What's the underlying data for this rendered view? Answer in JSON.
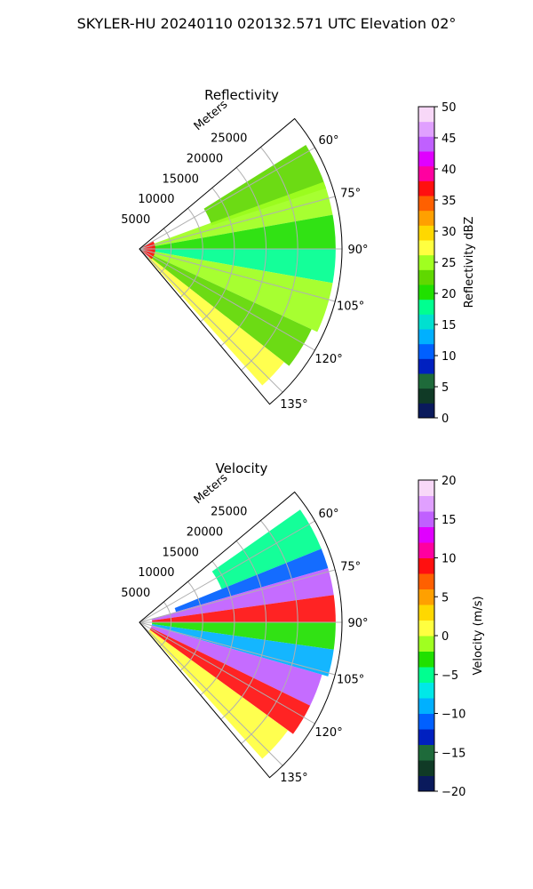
{
  "figure_title": "SKYLER-HU  20240110  020132.571 UTC Elevation 02°",
  "colors": {
    "reflectivity_colormap": [
      "#0a1a5c",
      "#103a26",
      "#1e6a3a",
      "#0020c0",
      "#0060ff",
      "#00b0ff",
      "#00e0d0",
      "#00ff90",
      "#20e000",
      "#60d800",
      "#a0ff20",
      "#ffff40",
      "#ffd800",
      "#ffa000",
      "#ff6000",
      "#ff1010",
      "#ff00a0",
      "#e000ff",
      "#c060ff",
      "#e0a0ff",
      "#f8d8f8"
    ],
    "velocity_colormap": [
      "#0a1a5c",
      "#103a26",
      "#1e6a3a",
      "#0020c0",
      "#0060ff",
      "#00b0ff",
      "#00e8e8",
      "#00ff90",
      "#20e000",
      "#a0ff20",
      "#ffff40",
      "#ffd800",
      "#ffa000",
      "#ff6000",
      "#ff1010",
      "#ff00a0",
      "#e000ff",
      "#c060ff",
      "#e0a0ff",
      "#f8d8f8"
    ]
  },
  "chart_data": [
    {
      "type": "heatmap",
      "title": "Reflectivity",
      "radial_label": "Meters",
      "range_ticks": [
        "5000",
        "10000",
        "15000",
        "20000",
        "25000"
      ],
      "range_values": [
        5000,
        10000,
        15000,
        20000,
        25000
      ],
      "max_range": 32000,
      "azimuth_range_deg": [
        50,
        140
      ],
      "azimuth_ticks": [
        "60°",
        "75°",
        "90°",
        "105°",
        "120°",
        "135°"
      ],
      "azimuth_values": [
        60,
        75,
        90,
        105,
        120,
        135
      ],
      "colorbar": {
        "label": "Reflectivity dBZ",
        "min": 0,
        "max": 50,
        "ticks": [
          "0",
          "5",
          "10",
          "15",
          "20",
          "25",
          "30",
          "35",
          "40",
          "45",
          "50"
        ]
      },
      "sectors": [
        {
          "az_from": 58,
          "az_to": 72,
          "r_from": 12000,
          "r_to": 31000,
          "value": 22
        },
        {
          "az_from": 70,
          "az_to": 80,
          "r_from": 2000,
          "r_to": 31000,
          "value": 26
        },
        {
          "az_from": 80,
          "az_to": 90,
          "r_from": 2000,
          "r_to": 31000,
          "value": 21
        },
        {
          "az_from": 90,
          "az_to": 100,
          "r_from": 2000,
          "r_to": 31000,
          "value": 17
        },
        {
          "az_from": 100,
          "az_to": 115,
          "r_from": 2000,
          "r_to": 31000,
          "value": 24
        },
        {
          "az_from": 115,
          "az_to": 128,
          "r_from": 2000,
          "r_to": 30000,
          "value": 22
        },
        {
          "az_from": 128,
          "az_to": 138,
          "r_from": 2000,
          "r_to": 29000,
          "value": 27
        },
        {
          "az_from": 60,
          "az_to": 130,
          "r_from": 0,
          "r_to": 2500,
          "value": 36
        }
      ]
    },
    {
      "type": "heatmap",
      "title": "Velocity",
      "radial_label": "Meters",
      "range_ticks": [
        "5000",
        "10000",
        "15000",
        "20000",
        "25000"
      ],
      "range_values": [
        5000,
        10000,
        15000,
        20000,
        25000
      ],
      "max_range": 32000,
      "azimuth_range_deg": [
        50,
        140
      ],
      "azimuth_ticks": [
        "60°",
        "75°",
        "90°",
        "105°",
        "120°",
        "135°"
      ],
      "azimuth_values": [
        60,
        75,
        90,
        105,
        120,
        135
      ],
      "colorbar": {
        "label": "Velocity (m/s)",
        "min": -20,
        "max": 20,
        "ticks": [
          "−20",
          "−15",
          "−10",
          "−5",
          "0",
          "5",
          "10",
          "15",
          "20"
        ]
      },
      "sectors": [
        {
          "az_from": 55,
          "az_to": 68,
          "r_from": 14000,
          "r_to": 31000,
          "value": -5
        },
        {
          "az_from": 68,
          "az_to": 74,
          "r_from": 6000,
          "r_to": 31000,
          "value": -11
        },
        {
          "az_from": 74,
          "az_to": 82,
          "r_from": 2000,
          "r_to": 31000,
          "value": 15
        },
        {
          "az_from": 82,
          "az_to": 90,
          "r_from": 2000,
          "r_to": 31000,
          "value": 9
        },
        {
          "az_from": 90,
          "az_to": 98,
          "r_from": 2000,
          "r_to": 31000,
          "value": -4
        },
        {
          "az_from": 98,
          "az_to": 106,
          "r_from": 2000,
          "r_to": 31000,
          "value": -10
        },
        {
          "az_from": 106,
          "az_to": 116,
          "r_from": 2000,
          "r_to": 30000,
          "value": 14
        },
        {
          "az_from": 116,
          "az_to": 126,
          "r_from": 2000,
          "r_to": 30000,
          "value": 8
        },
        {
          "az_from": 126,
          "az_to": 138,
          "r_from": 2000,
          "r_to": 29000,
          "value": 0
        }
      ]
    }
  ]
}
